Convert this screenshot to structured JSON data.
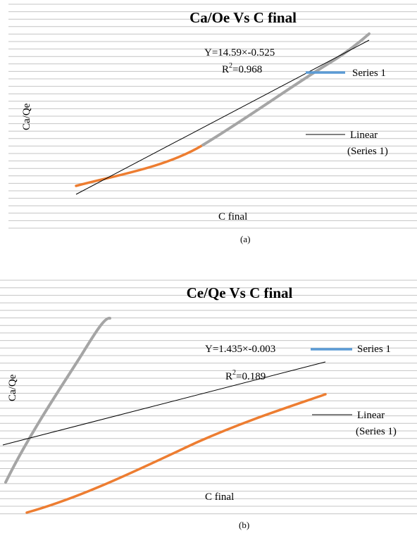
{
  "chart_data": [
    {
      "type": "line",
      "title": "Ca/Oe Vs C final",
      "xlabel": "C final",
      "ylabel": "Ca/Qe",
      "caption": "(a)",
      "grid": true,
      "legend_position": "right",
      "legend": [
        "Series 1",
        "Linear",
        "(Series 1)"
      ],
      "equation": "Y=14.59×-0.525",
      "r2_prefix": "R",
      "r2_value": "=0.968",
      "colors": {
        "series_early": "#ED7D31",
        "series_late": "#A5A5A5",
        "legend_series": "#5B9BD5",
        "trend": "#000000"
      }
    },
    {
      "type": "line",
      "title": "Ce/Qe Vs C final",
      "xlabel": "C final",
      "ylabel": "Ca/Qe",
      "caption": "(b)",
      "grid": true,
      "legend_position": "right",
      "legend": [
        "Series 1",
        "Linear",
        "(Series 1)"
      ],
      "equation": "Y=1.435×-0.003",
      "r2_prefix": "R",
      "r2_value": "=0.189",
      "colors": {
        "series_orange": "#ED7D31",
        "series_gray": "#A5A5A5",
        "legend_series": "#5B9BD5",
        "trend": "#000000"
      }
    }
  ]
}
